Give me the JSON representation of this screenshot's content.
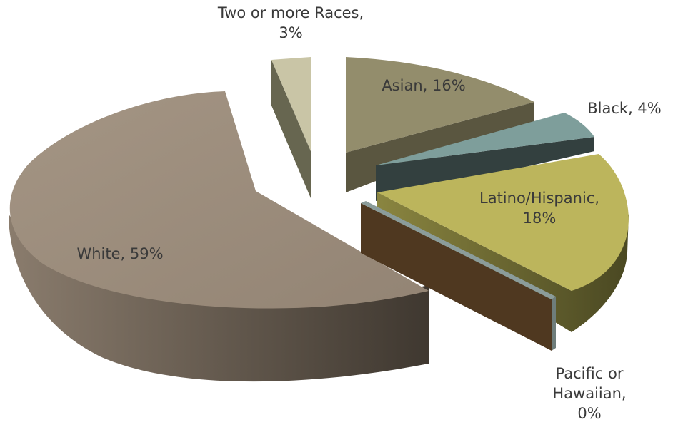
{
  "chart_data": {
    "type": "pie",
    "title": "",
    "legend": "none",
    "slices": [
      {
        "label": "White",
        "value": 59,
        "value_label": "59%",
        "color": "#9b8c7c",
        "side_color": "#6f6458",
        "text": "White, 59%"
      },
      {
        "label": "Two or more Races",
        "value": 3,
        "value_label": "3%",
        "color": "#c9c5a6",
        "side_color": "#73725c",
        "text_line1": "Two or more Races,",
        "text_line2": "3%"
      },
      {
        "label": "Asian",
        "value": 16,
        "value_label": "16%",
        "color": "#938d6c",
        "side_color": "#5f5b44",
        "text": "Asian, 16%"
      },
      {
        "label": "Black",
        "value": 4,
        "value_label": "4%",
        "color": "#7e9e9b",
        "side_color": "#3d4a49",
        "text": "Black, 4%"
      },
      {
        "label": "Latino/Hispanic",
        "value": 18,
        "value_label": "18%",
        "color": "#bcb55c",
        "side_color": "#5c5a2c",
        "text_line1": "Latino/Hispanic,",
        "text_line2": "18%"
      },
      {
        "label": "Pacific or Hawaiian",
        "value": 0,
        "value_label": "0%",
        "color": "#5b4128",
        "side_color": "#4a3420",
        "text_line1": "Pacific or",
        "text_line2": "Hawaiian,",
        "text_line3": "0%"
      }
    ]
  }
}
